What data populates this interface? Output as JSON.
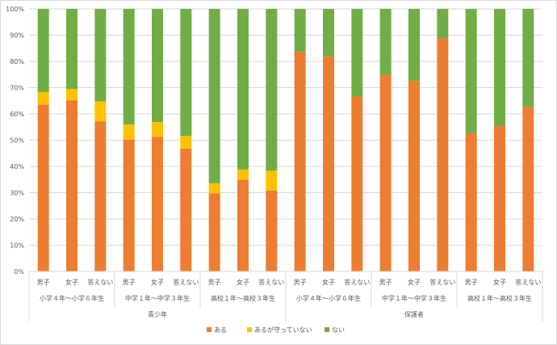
{
  "chart_data": {
    "type": "bar",
    "stacked": true,
    "percent_stacked": true,
    "ylim": [
      0,
      100
    ],
    "yticks": [
      "0%",
      "10%",
      "20%",
      "30%",
      "40%",
      "50%",
      "60%",
      "70%",
      "80%",
      "90%",
      "100%"
    ],
    "grid": true,
    "legend_position": "bottom",
    "top_groups": [
      {
        "label": "青少年",
        "span": 9
      },
      {
        "label": "保護者",
        "span": 9
      }
    ],
    "sub_groups": [
      {
        "label": "小学４年～小学６年生",
        "span": 3
      },
      {
        "label": "中学１年～中学３年生",
        "span": 3
      },
      {
        "label": "高校１年～高校３年生",
        "span": 3
      },
      {
        "label": "小学４年～小学６年生",
        "span": 3
      },
      {
        "label": "中学１年～中学３年生",
        "span": 3
      },
      {
        "label": "高校１年～高校３年生",
        "span": 3
      }
    ],
    "categories": [
      "男子",
      "女子",
      "答えない",
      "男子",
      "女子",
      "答えない",
      "男子",
      "女子",
      "答えない",
      "男子",
      "女子",
      "答えない",
      "男子",
      "女子",
      "答えない",
      "男子",
      "女子",
      "答えない"
    ],
    "series": [
      {
        "name": "ある",
        "color": "#ED7D31",
        "values": [
          63.5,
          65.2,
          57.2,
          50.2,
          51.3,
          46.8,
          29.7,
          35.0,
          30.8,
          83.6,
          81.9,
          66.6,
          74.8,
          72.6,
          88.8,
          52.6,
          55.4,
          62.7
        ]
      },
      {
        "name": "あるが守っていない",
        "color": "#FFC000",
        "values": [
          4.8,
          4.3,
          7.6,
          5.8,
          5.6,
          4.8,
          3.9,
          3.9,
          7.6,
          0,
          0,
          0,
          0,
          0,
          0,
          0,
          0,
          0
        ]
      },
      {
        "name": "ない",
        "color": "#70AD47",
        "values": [
          31.7,
          30.5,
          35.2,
          44.0,
          43.1,
          48.4,
          66.4,
          61.1,
          61.6,
          16.4,
          18.1,
          33.4,
          25.2,
          27.4,
          11.2,
          47.4,
          44.6,
          37.3
        ]
      }
    ]
  }
}
